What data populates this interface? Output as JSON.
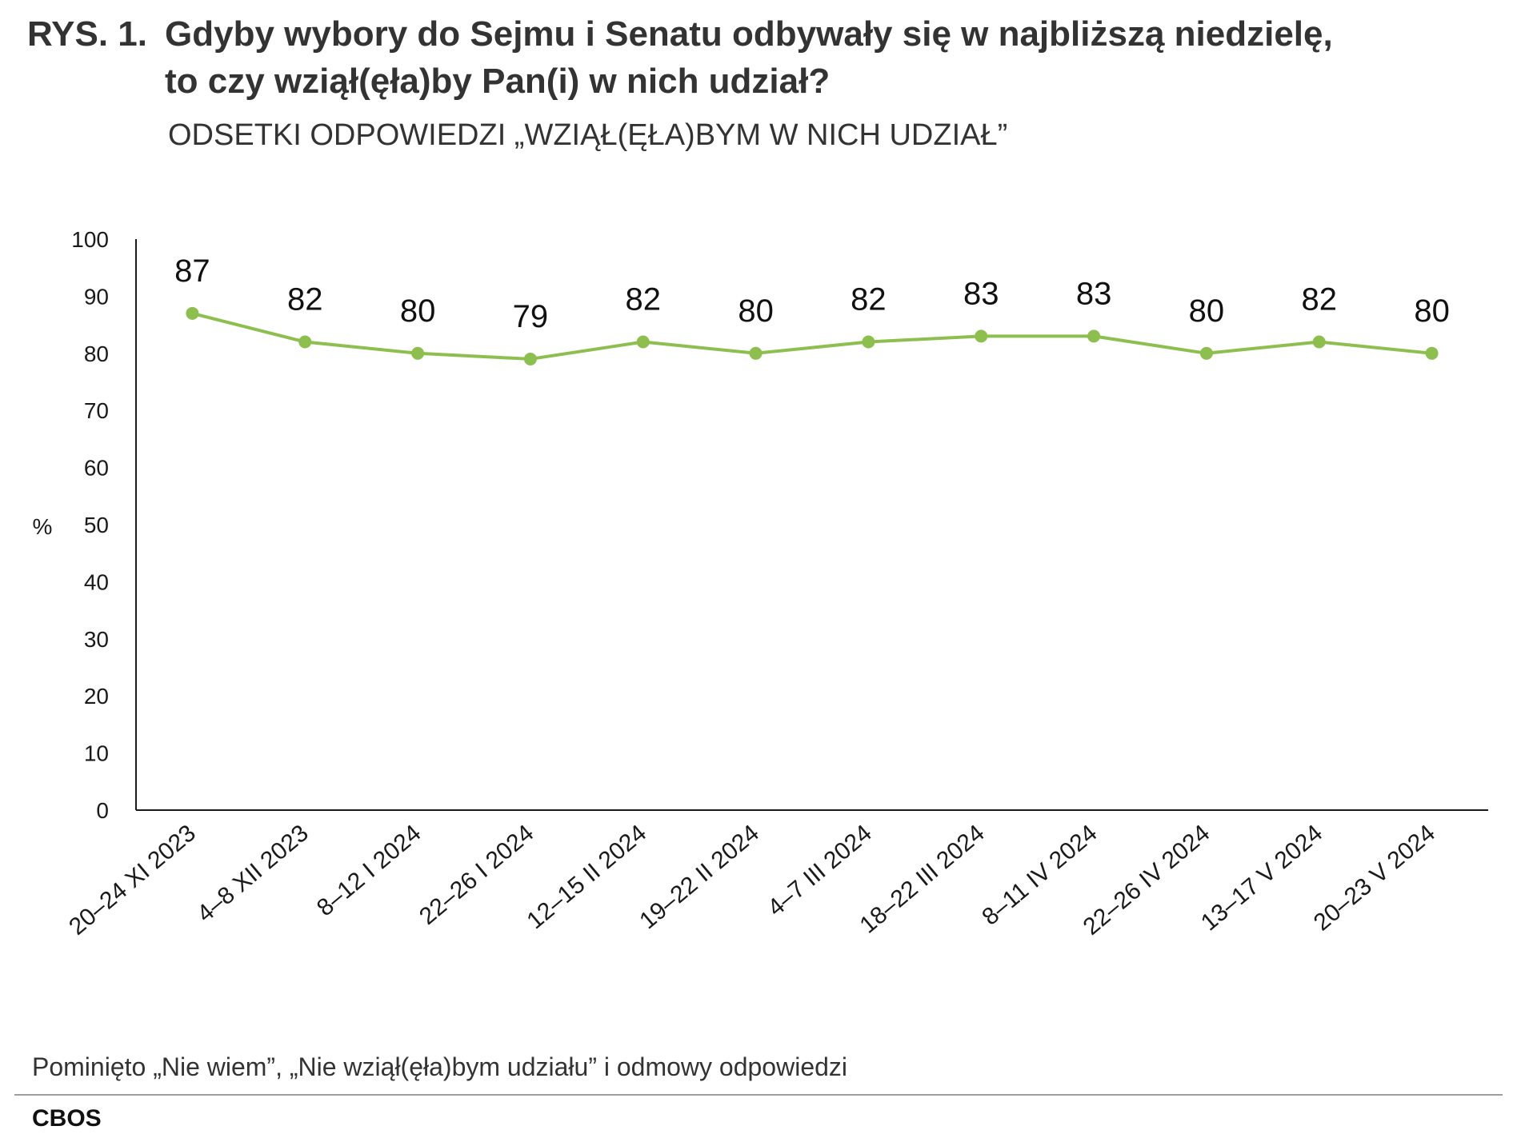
{
  "header": {
    "title_prefix": "RYS. 1.",
    "title_line1": "Gdyby wybory do Sejmu i Senatu odbywały się w najbliższą niedzielę,",
    "title_line2": "to czy wziął(ęła)by Pan(i) w nich udział?",
    "subtitle": "ODSETKI ODPOWIEDZI „WZIĄŁ(ĘŁA)BYM W NICH UDZIAŁ”"
  },
  "footer": {
    "note": "Pominięto „Nie wiem”, „Nie wziął(ęła)bym udziału” i odmowy odpowiedzi",
    "source": "CBOS"
  },
  "colors": {
    "series": "#8cbf4e",
    "axis": "#1a1a1a"
  },
  "chart_data": {
    "type": "line",
    "categories": [
      "20–24 XI 2023",
      "4–8 XII 2023",
      "8–12 I 2024",
      "22–26 I 2024",
      "12–15 II 2024",
      "19–22 II 2024",
      "4–7 III 2024",
      "18–22 III 2024",
      "8–11 IV 2024",
      "22–26 IV 2024",
      "13–17 V 2024",
      "20–23 V 2024"
    ],
    "series": [
      {
        "values": [
          87,
          82,
          80,
          79,
          82,
          80,
          82,
          83,
          83,
          80,
          82,
          80
        ]
      }
    ],
    "ylabel": "%",
    "ylim": [
      0,
      100
    ],
    "yticks": [
      0,
      10,
      20,
      30,
      40,
      50,
      60,
      70,
      80,
      90,
      100
    ],
    "data_labels": true,
    "grid": false,
    "legend": "none"
  }
}
